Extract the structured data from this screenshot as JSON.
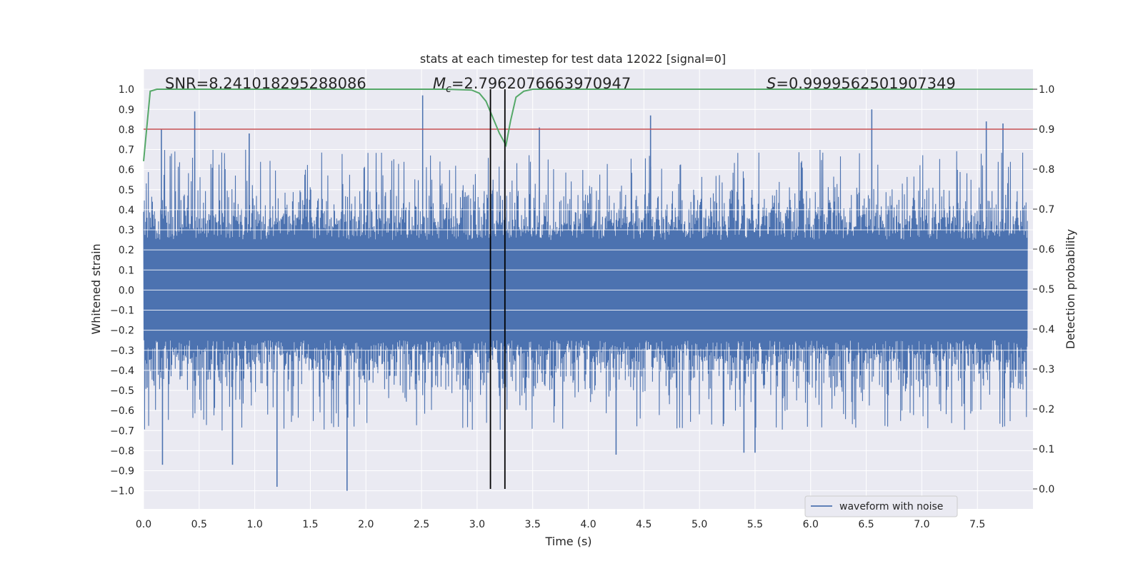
{
  "chart_data": {
    "type": "line",
    "title": "stats at each timestep for test data 12022 [signal=0]",
    "xlabel": "Time (s)",
    "ylabel": "Whitened strain",
    "y2label": "Detection probability",
    "xlim": [
      0.0,
      8.0
    ],
    "ylim": [
      -1.09,
      1.1
    ],
    "y2lim": [
      -0.05,
      1.05
    ],
    "xticks": [
      "0.0",
      "0.5",
      "1.0",
      "1.5",
      "2.0",
      "2.5",
      "3.0",
      "3.5",
      "4.0",
      "4.5",
      "5.0",
      "5.5",
      "6.0",
      "6.5",
      "7.0",
      "7.5"
    ],
    "yticks": [
      "1.0",
      "0.9",
      "0.8",
      "0.7",
      "0.6",
      "0.5",
      "0.4",
      "0.3",
      "0.2",
      "0.1",
      "0.0",
      "−0.1",
      "−0.2",
      "−0.3",
      "−0.4",
      "−0.5",
      "−0.6",
      "−0.7",
      "−0.8",
      "−0.9",
      "−1.0"
    ],
    "y2ticks": [
      "1.0",
      "0.9",
      "0.8",
      "0.7",
      "0.6",
      "0.5",
      "0.4",
      "0.3",
      "0.2",
      "0.1",
      "0.0"
    ],
    "grid": true,
    "legend": {
      "placement": "bottom-right",
      "entries": [
        "waveform with noise"
      ]
    },
    "annotations": {
      "snr": "SNR=8.241018295288086",
      "mc": "=2.7962076663970947",
      "s": "=0.9999562501907349"
    },
    "series": [
      {
        "name": "waveform with noise",
        "color": "#4c72b0",
        "axis": "left",
        "description": "dense noisy strain, mostly within ±0.4 with spikes to ±1.0",
        "peaks": [
          {
            "x": 0.16,
            "y": 0.8
          },
          {
            "x": 0.46,
            "y": 0.89
          },
          {
            "x": 0.95,
            "y": 0.78
          },
          {
            "x": 2.51,
            "y": 0.97
          },
          {
            "x": 3.56,
            "y": 0.81
          },
          {
            "x": 4.56,
            "y": 0.87
          },
          {
            "x": 6.55,
            "y": 0.9
          },
          {
            "x": 7.58,
            "y": 0.84
          },
          {
            "x": 7.73,
            "y": 0.83
          }
        ],
        "troughs": [
          {
            "x": 0.17,
            "y": -0.87
          },
          {
            "x": 0.8,
            "y": -0.87
          },
          {
            "x": 1.2,
            "y": -0.98
          },
          {
            "x": 1.83,
            "y": -1.0
          },
          {
            "x": 4.25,
            "y": -0.82
          },
          {
            "x": 5.4,
            "y": -0.81
          },
          {
            "x": 5.5,
            "y": -0.81
          }
        ]
      },
      {
        "name": "detection probability",
        "color": "#55a868",
        "axis": "right",
        "x": [
          0.0,
          0.06,
          0.12,
          2.7,
          2.95,
          3.02,
          3.08,
          3.14,
          3.2,
          3.26,
          3.3,
          3.35,
          3.42,
          3.5,
          8.0
        ],
        "y": [
          0.82,
          0.995,
          1.0,
          1.0,
          0.998,
          0.99,
          0.97,
          0.93,
          0.89,
          0.86,
          0.92,
          0.98,
          0.995,
          1.0,
          1.0
        ]
      },
      {
        "name": "threshold",
        "color": "#c44e52",
        "axis": "right",
        "x": [
          0.0,
          8.0
        ],
        "y": [
          0.9,
          0.9
        ]
      }
    ],
    "vlines": [
      3.12,
      3.25
    ],
    "vline_range": [
      0.0,
      1.0
    ],
    "noise_band": {
      "x_end": 7.95
    }
  }
}
